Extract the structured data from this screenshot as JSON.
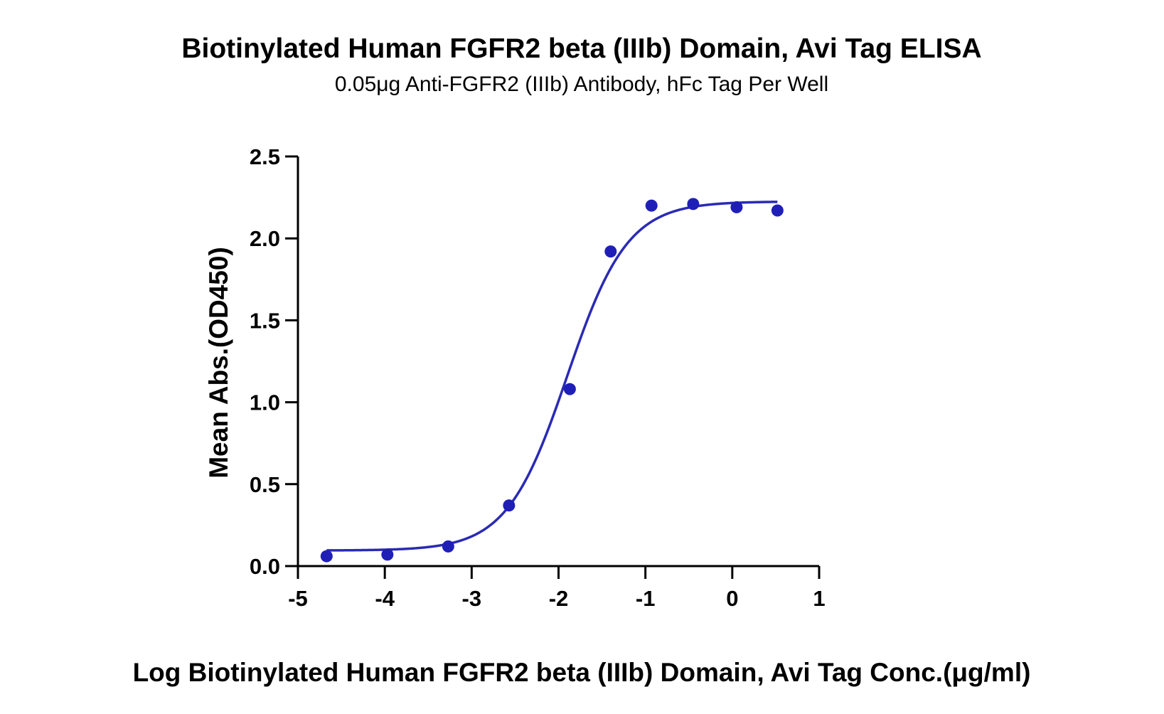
{
  "chart_data": {
    "type": "scatter",
    "title": "Biotinylated Human FGFR2 beta (IIIb) Domain, Avi Tag ELISA",
    "subtitle": "0.05μg Anti-FGFR2 (IIIb) Antibody, hFc Tag Per Well",
    "xlabel": "Log Biotinylated Human FGFR2 beta (IIIb) Domain, Avi Tag Conc.(μg/ml)",
    "ylabel": "Mean Abs.(OD450)",
    "xlim": [
      -5,
      1
    ],
    "ylim": [
      0,
      2.5
    ],
    "x_ticks": [
      "-5",
      "-4",
      "-3",
      "-2",
      "-1",
      "0",
      "1"
    ],
    "y_ticks": [
      "0.0",
      "0.5",
      "1.0",
      "1.5",
      "2.0",
      "2.5"
    ],
    "grid": false,
    "series": [
      {
        "type": "scatter",
        "x": [
          -4.67,
          -3.97,
          -3.27,
          -2.57,
          -1.87,
          -1.4,
          -0.93,
          -0.45,
          0.05,
          0.52
        ],
        "y": [
          0.06,
          0.07,
          0.12,
          0.37,
          1.08,
          1.92,
          2.2,
          2.21,
          2.19,
          2.17
        ]
      },
      {
        "type": "line",
        "fit": "four-parameter logistic",
        "x_range": [
          -4.67,
          0.52
        ],
        "bottom": 0.095,
        "top": 2.225,
        "log_ec50": -1.9,
        "hill_slope": 1.25
      }
    ],
    "colors": {
      "points": "#1f1fb8",
      "curve": "#2a2ab5",
      "axes": "#000000"
    }
  }
}
